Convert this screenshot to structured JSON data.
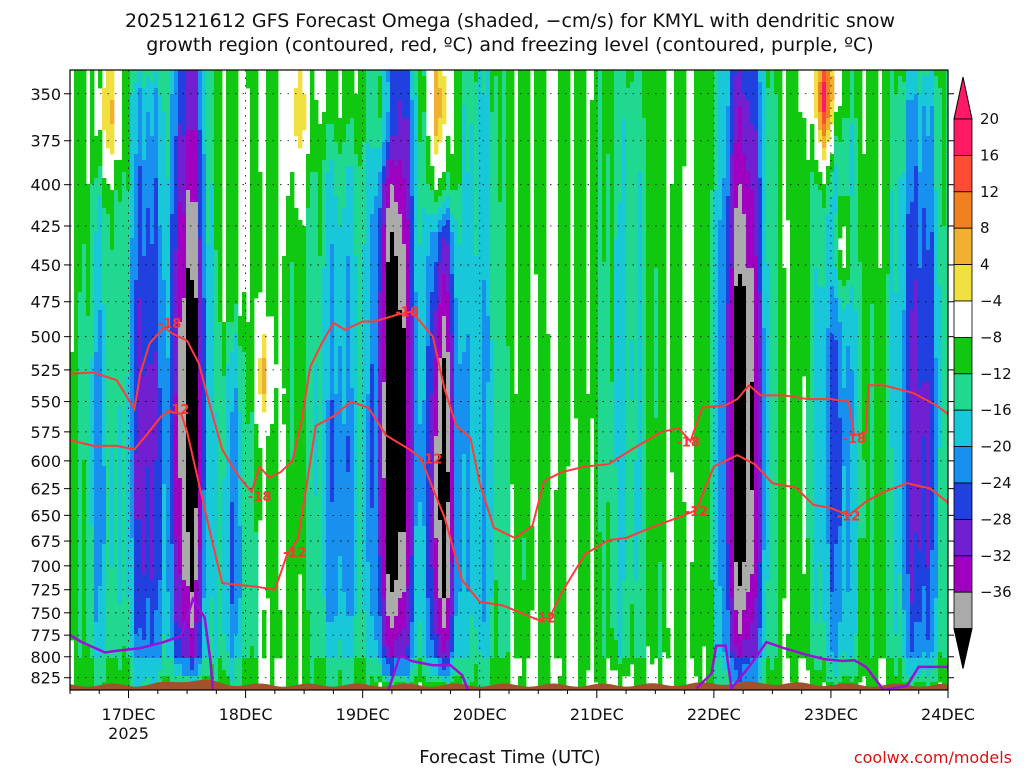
{
  "chart_data": {
    "type": "heatmap",
    "title": {
      "line1": "2025121612 GFS Forecast Omega (shaded, −cm/s) for KMYL with dendritic snow",
      "line2": "growth region (contoured, red, ºC) and freezing level (contoured, purple, ºC)"
    },
    "xlabel": "Forecast Time (UTC)",
    "credit": "coolwx.com/models",
    "x_ticks": [
      {
        "day": 17,
        "label": "17DEC",
        "sub": "2025"
      },
      {
        "day": 18,
        "label": "18DEC",
        "sub": ""
      },
      {
        "day": 19,
        "label": "19DEC",
        "sub": ""
      },
      {
        "day": 20,
        "label": "20DEC",
        "sub": ""
      },
      {
        "day": 21,
        "label": "21DEC",
        "sub": ""
      },
      {
        "day": 22,
        "label": "22DEC",
        "sub": ""
      },
      {
        "day": 23,
        "label": "23DEC",
        "sub": ""
      },
      {
        "day": 24,
        "label": "24DEC",
        "sub": ""
      }
    ],
    "x_range": [
      16.5,
      24.0
    ],
    "y_ticks": [
      350,
      375,
      400,
      425,
      450,
      475,
      500,
      525,
      550,
      575,
      600,
      625,
      650,
      675,
      700,
      725,
      750,
      775,
      800,
      825
    ],
    "y_range": [
      840,
      338
    ],
    "y_scale": "log-pressure",
    "grid": "dotted",
    "colorbar": {
      "labels": [
        "20",
        "16",
        "12",
        "8",
        "4",
        "−4",
        "−8",
        "−12",
        "−16",
        "−20",
        "−24",
        "−28",
        "−32",
        "−36"
      ],
      "colors": [
        "#ff1a66",
        "#ff4d33",
        "#f08020",
        "#f0b030",
        "#f0e040",
        "#ffffff",
        "#10c810",
        "#20d890",
        "#18c8d8",
        "#1890f0",
        "#2040e0",
        "#7020d0",
        "#a000c0",
        "#aaaaaa"
      ],
      "end_colors": {
        "top": "#ff1a66",
        "bottom": "#000000"
      }
    },
    "contour_labels": [
      {
        "text": "-18",
        "x": 17.35,
        "p": 490
      },
      {
        "text": "-12",
        "x": 17.42,
        "p": 556
      },
      {
        "text": "-18",
        "x": 18.12,
        "p": 632
      },
      {
        "text": "-12",
        "x": 18.42,
        "p": 686
      },
      {
        "text": "-18",
        "x": 19.38,
        "p": 482
      },
      {
        "text": "-12",
        "x": 19.58,
        "p": 598
      },
      {
        "text": "-12",
        "x": 20.55,
        "p": 755
      },
      {
        "text": "-18",
        "x": 21.78,
        "p": 583
      },
      {
        "text": "-12",
        "x": 21.85,
        "p": 646
      },
      {
        "text": "-18",
        "x": 23.2,
        "p": 580
      },
      {
        "text": "-12",
        "x": 23.15,
        "p": 650
      }
    ],
    "dgz_upper_-18C": [
      [
        16.5,
        528
      ],
      [
        16.7,
        527
      ],
      [
        16.9,
        533
      ],
      [
        17.05,
        556
      ],
      [
        17.1,
        528
      ],
      [
        17.18,
        505
      ],
      [
        17.3,
        493
      ],
      [
        17.38,
        498
      ],
      [
        17.5,
        503
      ],
      [
        17.6,
        520
      ],
      [
        17.7,
        555
      ],
      [
        17.8,
        590
      ],
      [
        17.88,
        604
      ],
      [
        17.95,
        615
      ],
      [
        18.05,
        628
      ],
      [
        18.12,
        605
      ],
      [
        18.2,
        615
      ],
      [
        18.3,
        610
      ],
      [
        18.4,
        600
      ],
      [
        18.48,
        565
      ],
      [
        18.55,
        523
      ],
      [
        18.65,
        505
      ],
      [
        18.75,
        490
      ],
      [
        18.85,
        495
      ],
      [
        19.0,
        489
      ],
      [
        19.1,
        489
      ],
      [
        19.3,
        484
      ],
      [
        19.42,
        482
      ],
      [
        19.5,
        490
      ],
      [
        19.6,
        500
      ],
      [
        19.7,
        540
      ],
      [
        19.8,
        570
      ],
      [
        19.92,
        580
      ],
      [
        20.0,
        620
      ],
      [
        20.12,
        662
      ],
      [
        20.3,
        672
      ],
      [
        20.45,
        660
      ],
      [
        20.55,
        618
      ],
      [
        20.7,
        610
      ],
      [
        20.9,
        605
      ],
      [
        21.1,
        603
      ],
      [
        21.3,
        590
      ],
      [
        21.55,
        575
      ],
      [
        21.7,
        572
      ],
      [
        21.8,
        583
      ],
      [
        21.9,
        555
      ],
      [
        22.1,
        553
      ],
      [
        22.2,
        548
      ],
      [
        22.3,
        537
      ],
      [
        22.4,
        545
      ],
      [
        22.6,
        545
      ],
      [
        22.8,
        548
      ],
      [
        23.0,
        548
      ],
      [
        23.15,
        550
      ],
      [
        23.2,
        578
      ],
      [
        23.3,
        575
      ],
      [
        23.32,
        537
      ],
      [
        23.45,
        537
      ],
      [
        23.7,
        543
      ],
      [
        23.9,
        553
      ],
      [
        24.0,
        560
      ]
    ],
    "dgz_lower_-12C": [
      [
        16.5,
        582
      ],
      [
        16.7,
        587
      ],
      [
        16.9,
        587
      ],
      [
        17.05,
        590
      ],
      [
        17.15,
        578
      ],
      [
        17.28,
        562
      ],
      [
        17.35,
        558
      ],
      [
        17.45,
        560
      ],
      [
        17.5,
        575
      ],
      [
        17.6,
        620
      ],
      [
        17.7,
        668
      ],
      [
        17.8,
        718
      ],
      [
        17.95,
        720
      ],
      [
        18.1,
        722
      ],
      [
        18.25,
        725
      ],
      [
        18.35,
        690
      ],
      [
        18.45,
        672
      ],
      [
        18.6,
        570
      ],
      [
        18.75,
        562
      ],
      [
        18.9,
        550
      ],
      [
        19.05,
        555
      ],
      [
        19.2,
        578
      ],
      [
        19.4,
        590
      ],
      [
        19.5,
        598
      ],
      [
        19.6,
        625
      ],
      [
        19.7,
        652
      ],
      [
        19.85,
        715
      ],
      [
        20.0,
        738
      ],
      [
        20.2,
        742
      ],
      [
        20.5,
        758
      ],
      [
        20.6,
        755
      ],
      [
        20.7,
        728
      ],
      [
        20.9,
        688
      ],
      [
        21.1,
        674
      ],
      [
        21.25,
        672
      ],
      [
        21.5,
        660
      ],
      [
        21.7,
        652
      ],
      [
        21.85,
        645
      ],
      [
        22.0,
        605
      ],
      [
        22.2,
        595
      ],
      [
        22.35,
        603
      ],
      [
        22.5,
        620
      ],
      [
        22.7,
        624
      ],
      [
        22.85,
        640
      ],
      [
        23.0,
        643
      ],
      [
        23.15,
        650
      ],
      [
        23.3,
        637
      ],
      [
        23.45,
        628
      ],
      [
        23.65,
        620
      ],
      [
        23.85,
        625
      ],
      [
        24.0,
        638
      ]
    ],
    "freezing_level": [
      [
        16.5,
        775
      ],
      [
        16.6,
        783
      ],
      [
        16.8,
        795
      ],
      [
        16.9,
        793
      ],
      [
        17.1,
        790
      ],
      [
        17.3,
        783
      ],
      [
        17.45,
        776
      ],
      [
        17.55,
        735
      ],
      [
        17.65,
        755
      ],
      [
        17.7,
        805
      ],
      [
        17.72,
        840
      ]
    ],
    "freezing_level_2": [
      [
        19.22,
        840
      ],
      [
        19.32,
        798
      ],
      [
        19.42,
        805
      ],
      [
        19.6,
        810
      ],
      [
        19.75,
        810
      ],
      [
        19.85,
        822
      ],
      [
        19.9,
        840
      ]
    ],
    "freezing_level_3": [
      [
        21.85,
        838
      ],
      [
        21.98,
        820
      ],
      [
        22.02,
        787
      ],
      [
        22.1,
        787
      ],
      [
        22.15,
        838
      ],
      [
        22.3,
        812
      ],
      [
        22.45,
        783
      ],
      [
        22.6,
        790
      ],
      [
        22.8,
        798
      ],
      [
        22.95,
        803
      ],
      [
        23.1,
        805
      ],
      [
        23.2,
        804
      ],
      [
        23.3,
        812
      ],
      [
        23.45,
        840
      ],
      [
        23.65,
        835
      ],
      [
        23.75,
        812
      ],
      [
        24.0,
        812
      ]
    ],
    "omega_columns": [
      {
        "x": 16.75,
        "width": 0.2,
        "top": 420,
        "bottom": 830,
        "strength": 12
      },
      {
        "x": 17.15,
        "width": 0.25,
        "top": 360,
        "bottom": 830,
        "strength": 22
      },
      {
        "x": 17.52,
        "width": 0.22,
        "top": 338,
        "bottom": 815,
        "strength": 36
      },
      {
        "x": 17.9,
        "width": 0.2,
        "top": 520,
        "bottom": 830,
        "strength": 14
      },
      {
        "x": 18.8,
        "width": 0.35,
        "top": 400,
        "bottom": 830,
        "strength": 14
      },
      {
        "x": 19.28,
        "width": 0.26,
        "top": 338,
        "bottom": 815,
        "strength": 38
      },
      {
        "x": 19.68,
        "width": 0.18,
        "top": 440,
        "bottom": 815,
        "strength": 34
      },
      {
        "x": 20.0,
        "width": 0.3,
        "top": 338,
        "bottom": 830,
        "strength": 12
      },
      {
        "x": 21.25,
        "width": 0.3,
        "top": 338,
        "bottom": 800,
        "strength": 9
      },
      {
        "x": 22.25,
        "width": 0.28,
        "top": 338,
        "bottom": 830,
        "strength": 36
      },
      {
        "x": 23.05,
        "width": 0.3,
        "top": 380,
        "bottom": 820,
        "strength": 16
      },
      {
        "x": 23.75,
        "width": 0.3,
        "top": 360,
        "bottom": 820,
        "strength": 22
      }
    ],
    "upper_positive_patches": [
      {
        "x": 16.85,
        "p": 360,
        "strength": 6
      },
      {
        "x": 18.15,
        "p": 530,
        "strength": 6
      },
      {
        "x": 18.45,
        "p": 360,
        "strength": 5
      },
      {
        "x": 19.2,
        "p": 360,
        "strength": 5
      },
      {
        "x": 19.65,
        "p": 355,
        "strength": 8
      },
      {
        "x": 22.95,
        "p": 355,
        "strength": 20
      },
      {
        "x": 23.1,
        "p": 440,
        "strength": 6
      }
    ]
  }
}
